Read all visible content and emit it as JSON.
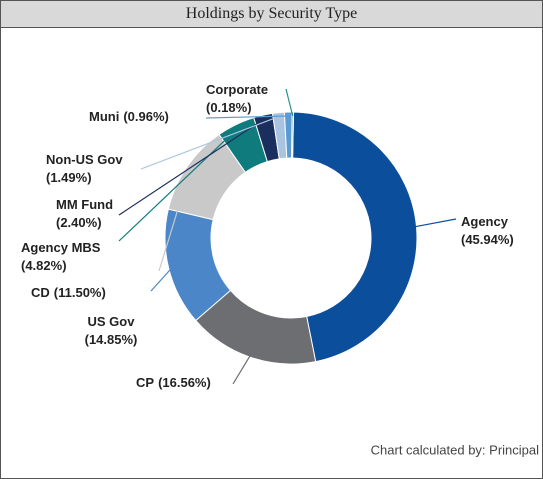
{
  "chart_data": {
    "type": "donut",
    "title": "Holdings by Security Type",
    "footnote": "Chart calculated by: Principal",
    "categories": [
      "Agency",
      "CP",
      "US Gov",
      "CD",
      "Agency MBS",
      "MM Fund",
      "Non-US Gov",
      "Muni",
      "Corporate"
    ],
    "values": [
      45.94,
      16.56,
      14.85,
      11.5,
      4.82,
      2.4,
      1.49,
      0.96,
      0.18
    ],
    "value_labels": [
      "(45.94%)",
      "(16.56%)",
      "(14.85%)",
      "(11.50%)",
      "(4.82%)",
      "(2.40%)",
      "(1.49%)",
      "(0.96%)",
      "(0.18%)"
    ],
    "colors": [
      "#0b4f9c",
      "#6d6e71",
      "#4a86c8",
      "#c9c9c9",
      "#0f7b7d",
      "#1b2f5e",
      "#a9c4e0",
      "#5b9bd5",
      "#2a8f8f"
    ]
  }
}
